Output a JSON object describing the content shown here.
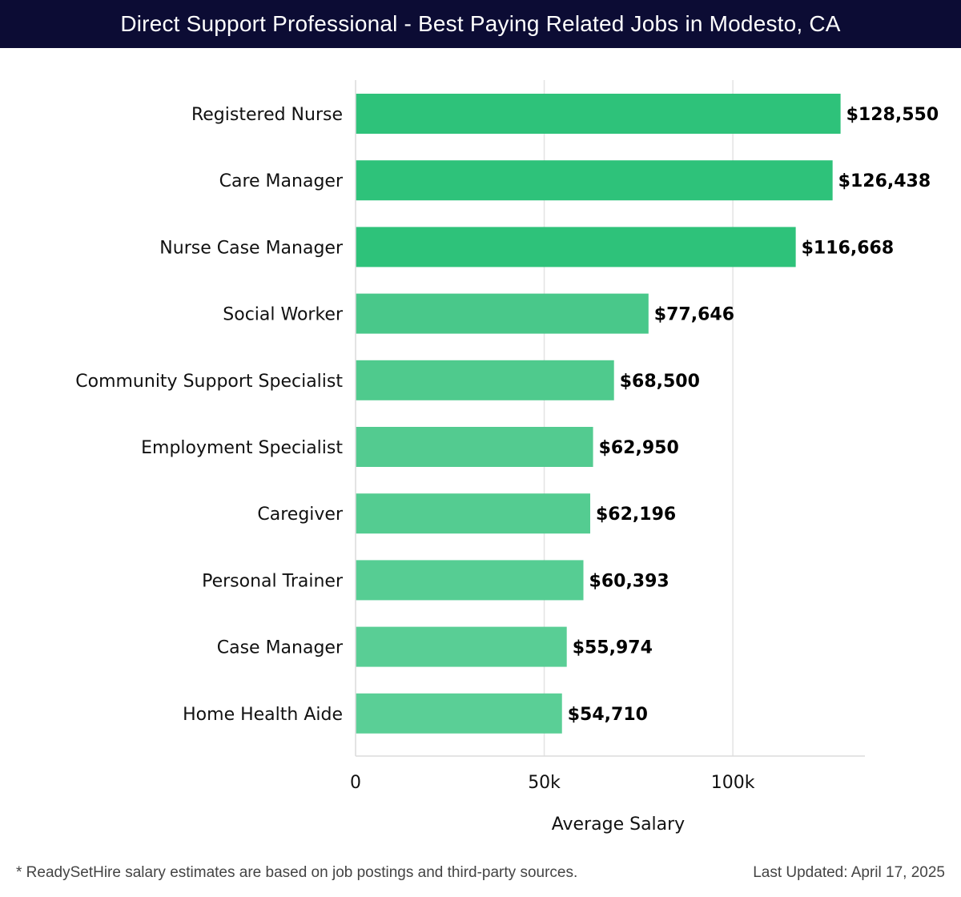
{
  "header": {
    "title": "Direct Support Professional - Best Paying Related Jobs in Modesto, CA"
  },
  "chart_data": {
    "type": "bar",
    "orientation": "horizontal",
    "title": "Direct Support Professional - Best Paying Related Jobs in Modesto, CA",
    "xlabel": "Average Salary",
    "ylabel": "",
    "xlim": [
      0,
      135000
    ],
    "x_ticks": [
      {
        "value": 0,
        "label": "0"
      },
      {
        "value": 50000,
        "label": "50k"
      },
      {
        "value": 100000,
        "label": "100k"
      }
    ],
    "grid": true,
    "categories": [
      "Registered Nurse",
      "Care Manager",
      "Nurse Case Manager",
      "Social Worker",
      "Community Support Specialist",
      "Employment Specialist",
      "Caregiver",
      "Personal Trainer",
      "Case Manager",
      "Home Health Aide"
    ],
    "values": [
      128550,
      126438,
      116668,
      77646,
      68500,
      62950,
      62196,
      60393,
      55974,
      54710
    ],
    "value_labels": [
      "$128,550",
      "$126,438",
      "$116,668",
      "$77,646",
      "$68,500",
      "$62,950",
      "$62,196",
      "$60,393",
      "$55,974",
      "$54,710"
    ],
    "colors": [
      "#2ec27a",
      "#2ec27a",
      "#2ec27a",
      "#49c88a",
      "#4fca8d",
      "#53cb90",
      "#54cc91",
      "#56cd93",
      "#59ce95",
      "#5acf96"
    ]
  },
  "footer": {
    "note": "* ReadySetHire salary estimates are based on job postings and third-party sources.",
    "updated": "Last Updated: April 17, 2025"
  }
}
